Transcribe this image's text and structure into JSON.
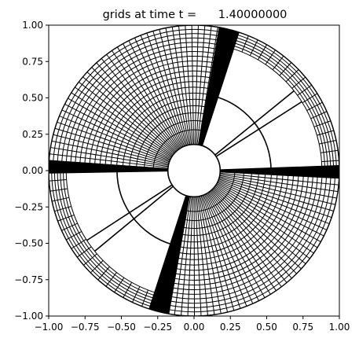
{
  "figure": {
    "title": "grids at time t =      1.40000000"
  },
  "chart_data": {
    "type": "grid-plot",
    "title": "grids at time t =      1.40000000",
    "xlim": [
      -1.0,
      1.0
    ],
    "ylim": [
      -1.0,
      1.0
    ],
    "x_ticks": [
      "−1.00",
      "−0.75",
      "−0.50",
      "−0.25",
      "0.00",
      "0.25",
      "0.50",
      "0.75",
      "1.00"
    ],
    "y_ticks": [
      "1.00",
      "0.75",
      "0.50",
      "0.25",
      "0.00",
      "−0.25",
      "−0.50",
      "−0.75",
      "−1.00"
    ],
    "x_tick_values": [
      -1.0,
      -0.75,
      -0.5,
      -0.25,
      0.0,
      0.25,
      0.5,
      0.75,
      1.0
    ],
    "y_tick_values": [
      1.0,
      0.75,
      0.5,
      0.25,
      0.0,
      -0.25,
      -0.5,
      -0.75,
      -1.0
    ],
    "geometry": {
      "inner_radius": 0.18,
      "outer_radius": 1.0,
      "ring_radii": [
        0.88,
        0.9,
        0.92,
        0.94,
        0.96,
        0.98,
        1.0
      ],
      "mid_arc_radius": 0.53
    },
    "open_sectors_deg": [
      {
        "name": "upper-right-gap",
        "from": 0,
        "to": 72
      },
      {
        "name": "lower-left-gap",
        "from": 180,
        "to": 253
      }
    ],
    "dense_sectors_deg": [
      {
        "name": "upper-left-grid",
        "from": 78,
        "to": 176,
        "spokes": 38,
        "rings": 20
      },
      {
        "name": "lower-right-grid",
        "from": 257,
        "to": 357,
        "spokes": 38,
        "rings": 20
      }
    ],
    "wedges_deg": [
      {
        "name": "solid-wedge-top",
        "from": 72,
        "to": 80
      },
      {
        "name": "solid-wedge-bottom",
        "from": 252,
        "to": 260
      },
      {
        "name": "solid-wedge-right",
        "from": 357,
        "to": 362
      },
      {
        "name": "solid-wedge-left",
        "from": 176,
        "to": 181
      }
    ]
  }
}
